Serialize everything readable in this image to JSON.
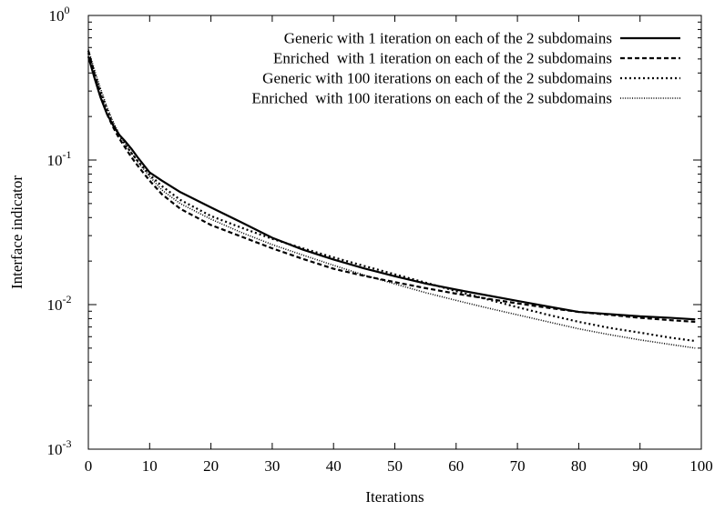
{
  "chart_data": {
    "type": "line",
    "title": "",
    "xlabel": "Iterations",
    "ylabel": "Interface indicator",
    "xlim": [
      0,
      100
    ],
    "ylim": [
      0.001,
      1
    ],
    "yscale": "log",
    "grid": false,
    "legend_position": "top-right",
    "x_ticks": [
      0,
      10,
      20,
      30,
      40,
      50,
      60,
      70,
      80,
      90,
      100
    ],
    "y_ticks": [
      {
        "value": 0.001,
        "base": "10",
        "exp": "-3"
      },
      {
        "value": 0.01,
        "base": "10",
        "exp": "-2"
      },
      {
        "value": 0.1,
        "base": "10",
        "exp": "-1"
      },
      {
        "value": 1,
        "base": "10",
        "exp": "0"
      }
    ],
    "x": [
      0,
      1,
      2,
      3,
      4,
      5,
      6,
      7,
      8,
      10,
      12,
      15,
      20,
      25,
      30,
      35,
      40,
      45,
      50,
      55,
      60,
      65,
      70,
      75,
      80,
      85,
      90,
      95,
      99
    ],
    "series": [
      {
        "name": "Generic with 1 iteration on each of the 2 subdomains",
        "style": "solid",
        "values": [
          0.52,
          0.37,
          0.27,
          0.21,
          0.175,
          0.15,
          0.135,
          0.12,
          0.105,
          0.082,
          0.072,
          0.06,
          0.047,
          0.037,
          0.029,
          0.024,
          0.0205,
          0.0178,
          0.0157,
          0.014,
          0.0127,
          0.0116,
          0.0106,
          0.0097,
          0.0089,
          0.0086,
          0.0083,
          0.0081,
          0.0079
        ]
      },
      {
        "name": "Enriched  with 1 iteration on each of the 2 subdomains",
        "style": "dashed",
        "values": [
          0.57,
          0.39,
          0.28,
          0.21,
          0.17,
          0.142,
          0.122,
          0.105,
          0.092,
          0.072,
          0.058,
          0.046,
          0.0355,
          0.0295,
          0.0245,
          0.0207,
          0.0177,
          0.0158,
          0.0143,
          0.013,
          0.0119,
          0.011,
          0.0102,
          0.0095,
          0.0089,
          0.0085,
          0.0081,
          0.0078,
          0.0076
        ]
      },
      {
        "name": "Generic with 100 iterations on each of the 2 subdomains",
        "style": "dotted",
        "values": [
          0.55,
          0.4,
          0.3,
          0.225,
          0.18,
          0.15,
          0.128,
          0.112,
          0.099,
          0.079,
          0.066,
          0.053,
          0.041,
          0.034,
          0.0285,
          0.0245,
          0.0212,
          0.0185,
          0.0162,
          0.0142,
          0.0124,
          0.0109,
          0.0096,
          0.0085,
          0.0076,
          0.0069,
          0.0064,
          0.0059,
          0.0056
        ]
      },
      {
        "name": "Enriched  with 100 iterations on each of the 2 subdomains",
        "style": "fine-dotted",
        "values": [
          0.58,
          0.42,
          0.31,
          0.235,
          0.185,
          0.152,
          0.13,
          0.113,
          0.098,
          0.077,
          0.062,
          0.05,
          0.039,
          0.0315,
          0.026,
          0.022,
          0.0187,
          0.016,
          0.0139,
          0.0121,
          0.0107,
          0.0095,
          0.0085,
          0.0076,
          0.0068,
          0.0062,
          0.0057,
          0.0053,
          0.005
        ]
      }
    ]
  }
}
